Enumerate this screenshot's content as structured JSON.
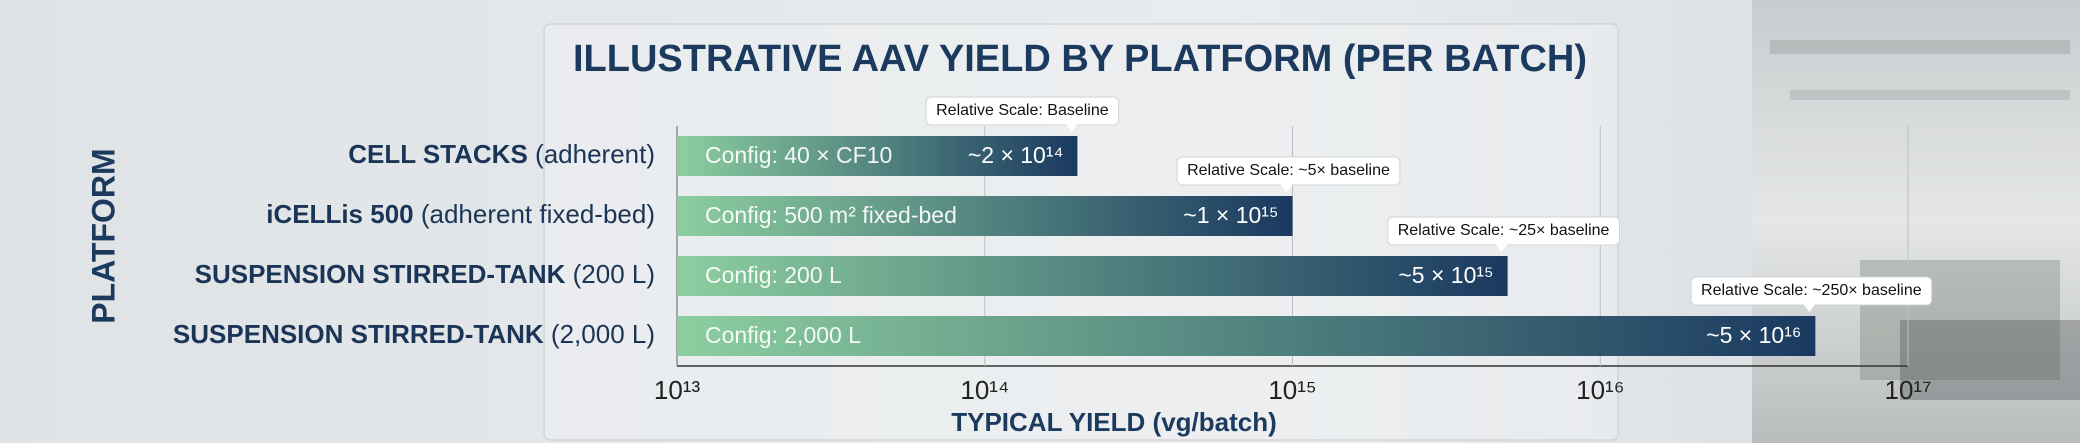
{
  "chart_data": {
    "type": "bar",
    "orientation": "horizontal",
    "title": "ILLUSTRATIVE AAV YIELD BY PLATFORM (PER BATCH)",
    "x_label": "TYPICAL YIELD (vg/batch)",
    "y_label": "PLATFORM",
    "categories": [
      "CELL STACKS (adherent)",
      "iCELLis 500 (adherent fixed-bed)",
      "SUSPENSION STIRRED-TANK (200 L)",
      "SUSPENSION STIRRED-TANK (2,000 L)"
    ],
    "values": [
      200000000000000,
      1000000000000000,
      5000000000000000,
      50000000000000000
    ],
    "value_labels": [
      "~2 × 10¹⁴",
      "~1 × 10¹⁵",
      "~5 × 10¹⁵",
      "~5 × 10¹⁶"
    ],
    "configs": [
      "Config: 40 × CF10",
      "Config: 500 m² fixed-bed",
      "Config: 200 L",
      "Config: 2,000 L"
    ],
    "annotations": [
      "Relative Scale: Baseline",
      "Relative Scale: ~5× baseline",
      "Relative Scale: ~25× baseline",
      "Relative Scale: ~250× baseline"
    ],
    "xscale": "log",
    "xlim": [
      10000000000000,
      100000000000000000
    ],
    "xticks": [
      {
        "value": 10000000000000,
        "label": "10¹³"
      },
      {
        "value": 100000000000000,
        "label": "10¹⁴"
      },
      {
        "value": 1000000000000000,
        "label": "10¹⁵"
      },
      {
        "value": 10000000000000000,
        "label": "10¹⁶"
      },
      {
        "value": 100000000000000000,
        "label": "10¹⁷"
      }
    ],
    "grid": true,
    "color_start": "#8ccf9f",
    "color_end": "#1a3960"
  }
}
